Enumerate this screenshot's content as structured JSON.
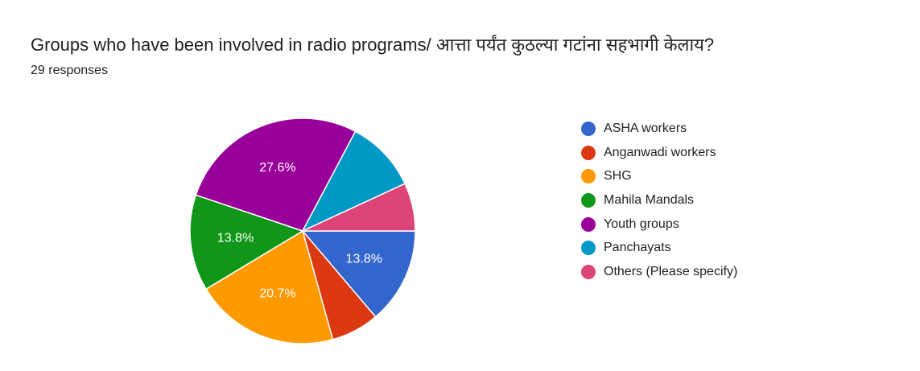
{
  "header": {
    "title": "Groups who have been involved in radio programs/ आत्ता पर्यंत कुठल्या गटांना सहभागी केलाय?",
    "responses": "29 responses"
  },
  "chart_data": {
    "type": "pie",
    "categories": [
      "ASHA workers",
      "Anganwadi workers",
      "SHG",
      "Mahila Mandals",
      "Youth groups",
      "Panchayats",
      "Others (Please specify)"
    ],
    "values": [
      4,
      2,
      6,
      4,
      8,
      3,
      2
    ],
    "percent_labels": [
      "13.8%",
      "",
      "20.7%",
      "13.8%",
      "27.6%",
      "",
      ""
    ],
    "colors": [
      "#3366cc",
      "#dc3912",
      "#ff9900",
      "#109618",
      "#990099",
      "#0099c6",
      "#dd4477"
    ],
    "legend_position": "right"
  }
}
